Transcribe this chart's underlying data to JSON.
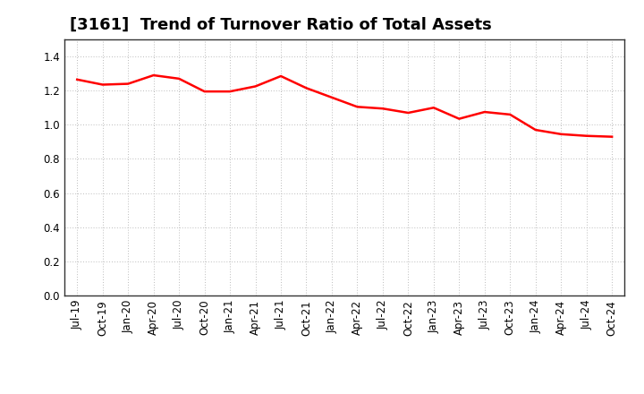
{
  "title": "[3161]  Trend of Turnover Ratio of Total Assets",
  "x_labels": [
    "Jul-19",
    "Oct-19",
    "Jan-20",
    "Apr-20",
    "Jul-20",
    "Oct-20",
    "Jan-21",
    "Apr-21",
    "Jul-21",
    "Oct-21",
    "Jan-22",
    "Apr-22",
    "Jul-22",
    "Oct-22",
    "Jan-23",
    "Apr-23",
    "Jul-23",
    "Oct-23",
    "Jan-24",
    "Apr-24",
    "Jul-24",
    "Oct-24"
  ],
  "y_values": [
    1.265,
    1.235,
    1.24,
    1.29,
    1.27,
    1.195,
    1.195,
    1.225,
    1.285,
    1.215,
    1.16,
    1.105,
    1.095,
    1.07,
    1.1,
    1.035,
    1.075,
    1.06,
    0.97,
    0.945,
    0.935,
    0.93
  ],
  "line_color": "#ff0000",
  "line_width": 1.8,
  "ylim": [
    0.0,
    1.5
  ],
  "yticks": [
    0.0,
    0.2,
    0.4,
    0.6,
    0.8,
    1.0,
    1.2,
    1.4
  ],
  "grid_color": "#bbbbbb",
  "bg_color": "#ffffff",
  "title_fontsize": 13,
  "tick_fontsize": 8.5
}
